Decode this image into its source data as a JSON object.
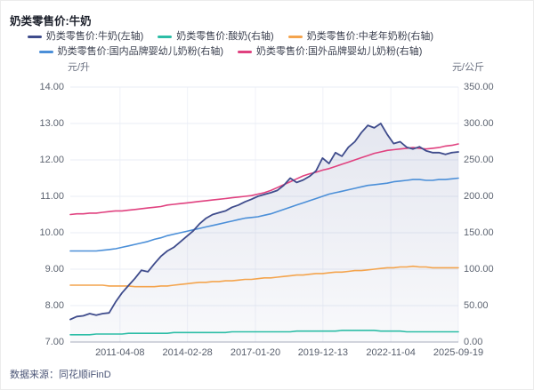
{
  "title": "奶类零售价:牛奶",
  "source": "数据来源：同花顺iFinD",
  "chart_data": {
    "type": "line",
    "title": "奶类零售价:牛奶",
    "legend_position": "top-center",
    "grid": "horizontal-and-faint-vertical",
    "grid_color": "#e9edf5",
    "vgrid_color": "#f0f2f8",
    "axis_line_color": "#a9aebc",
    "area_fill_top": "rgba(90,104,160,0.16)",
    "area_fill_bottom": "rgba(90,104,160,0.04)",
    "left_axis": {
      "unit": "元/升",
      "min": 7,
      "max": 14,
      "ticks": [
        "14.00",
        "13.00",
        "12.00",
        "11.00",
        "10.00",
        "9.00",
        "8.00",
        "7.00"
      ]
    },
    "right_axis": {
      "unit": "元/公斤",
      "min": 0,
      "max": 350,
      "ticks": [
        "350.00",
        "300.00",
        "250.00",
        "200.00",
        "150.00",
        "100.00",
        "50.00",
        "0.00"
      ]
    },
    "x_ticks": {
      "labels": [
        "2011-04-08",
        "2014-02-28",
        "2017-01-20",
        "2019-12-13",
        "2022-11-04",
        "2025-09-19"
      ],
      "positions": [
        0.128,
        0.302,
        0.477,
        0.651,
        0.826,
        1.0
      ]
    },
    "series": [
      {
        "name": "奶类零售价:牛奶(左轴)",
        "axis": "left",
        "color": "#3f4c8c",
        "width": 1.8,
        "area": true,
        "values": [
          7.62,
          7.7,
          7.72,
          7.78,
          7.74,
          7.78,
          7.8,
          8.1,
          8.35,
          8.55,
          8.75,
          8.97,
          8.93,
          9.15,
          9.35,
          9.5,
          9.6,
          9.75,
          9.9,
          10.05,
          10.25,
          10.4,
          10.5,
          10.55,
          10.6,
          10.7,
          10.76,
          10.85,
          10.92,
          11.0,
          11.05,
          11.1,
          11.16,
          11.3,
          11.5,
          11.38,
          11.45,
          11.55,
          11.7,
          12.05,
          11.9,
          12.2,
          12.1,
          12.35,
          12.5,
          12.75,
          12.95,
          12.88,
          13.0,
          12.7,
          12.45,
          12.5,
          12.35,
          12.3,
          12.36,
          12.25,
          12.2,
          12.2,
          12.15,
          12.2,
          12.22
        ]
      },
      {
        "name": "奶类零售价:酸奶(右轴)",
        "axis": "right",
        "color": "#2cbda6",
        "width": 1.6,
        "area": false,
        "values": [
          10,
          10,
          10,
          10,
          11,
          11,
          11,
          11,
          11,
          12,
          12,
          12,
          12,
          12,
          12,
          12,
          13,
          13,
          13,
          13,
          13,
          13,
          13,
          13,
          13,
          14,
          14,
          14,
          14,
          14,
          14,
          14,
          14,
          14,
          14,
          15,
          15,
          15,
          15,
          15,
          15,
          15,
          16,
          16,
          16,
          16,
          16,
          16,
          15,
          15,
          15,
          15,
          14,
          14,
          14,
          14,
          14,
          14,
          14,
          14,
          14
        ]
      },
      {
        "name": "奶类零售价:中老年奶粉(右轴)",
        "axis": "right",
        "color": "#f4a44d",
        "width": 1.6,
        "area": false,
        "values": [
          78,
          78,
          78,
          78,
          78,
          78,
          77,
          77,
          77,
          77,
          76,
          76,
          76,
          76,
          77,
          77,
          78,
          79,
          80,
          81,
          82,
          82,
          83,
          83,
          84,
          84,
          85,
          86,
          86,
          87,
          88,
          88,
          89,
          90,
          91,
          92,
          92,
          93,
          94,
          94,
          95,
          96,
          96,
          97,
          98,
          98,
          99,
          100,
          101,
          102,
          102,
          103,
          103,
          104,
          103,
          103,
          102,
          102,
          102,
          102,
          102
        ]
      },
      {
        "name": "奶类零售价:国内品牌婴幼儿奶粉(右轴)",
        "axis": "right",
        "color": "#4b8fd8",
        "width": 1.6,
        "area": false,
        "values": [
          125,
          125,
          125,
          125,
          125,
          126,
          127,
          128,
          130,
          132,
          134,
          136,
          138,
          141,
          143,
          146,
          148,
          150,
          152,
          154,
          156,
          158,
          160,
          162,
          164,
          166,
          168,
          170,
          171,
          172,
          174,
          176,
          179,
          182,
          185,
          188,
          191,
          194,
          197,
          200,
          203,
          205,
          207,
          209,
          211,
          213,
          215,
          216,
          217,
          218,
          220,
          221,
          222,
          223,
          223,
          222,
          222,
          223,
          223,
          224,
          225
        ]
      },
      {
        "name": "奶类零售价:国外品牌婴幼儿奶粉(右轴)",
        "axis": "right",
        "color": "#e0417f",
        "width": 1.6,
        "area": false,
        "values": [
          175,
          176,
          176,
          177,
          177,
          178,
          179,
          180,
          180,
          181,
          182,
          183,
          184,
          185,
          186,
          188,
          189,
          190,
          191,
          192,
          193,
          194,
          195,
          196,
          197,
          198,
          199,
          200,
          201,
          203,
          205,
          208,
          212,
          216,
          220,
          224,
          228,
          231,
          233,
          236,
          238,
          241,
          244,
          247,
          250,
          253,
          256,
          259,
          261,
          263,
          264,
          265,
          266,
          267,
          266,
          265,
          266,
          267,
          269,
          270,
          272
        ]
      }
    ],
    "legend_rows": [
      [
        0,
        1,
        2
      ],
      [
        3,
        4
      ]
    ],
    "draw_order": [
      1,
      2,
      3,
      4,
      0
    ]
  }
}
